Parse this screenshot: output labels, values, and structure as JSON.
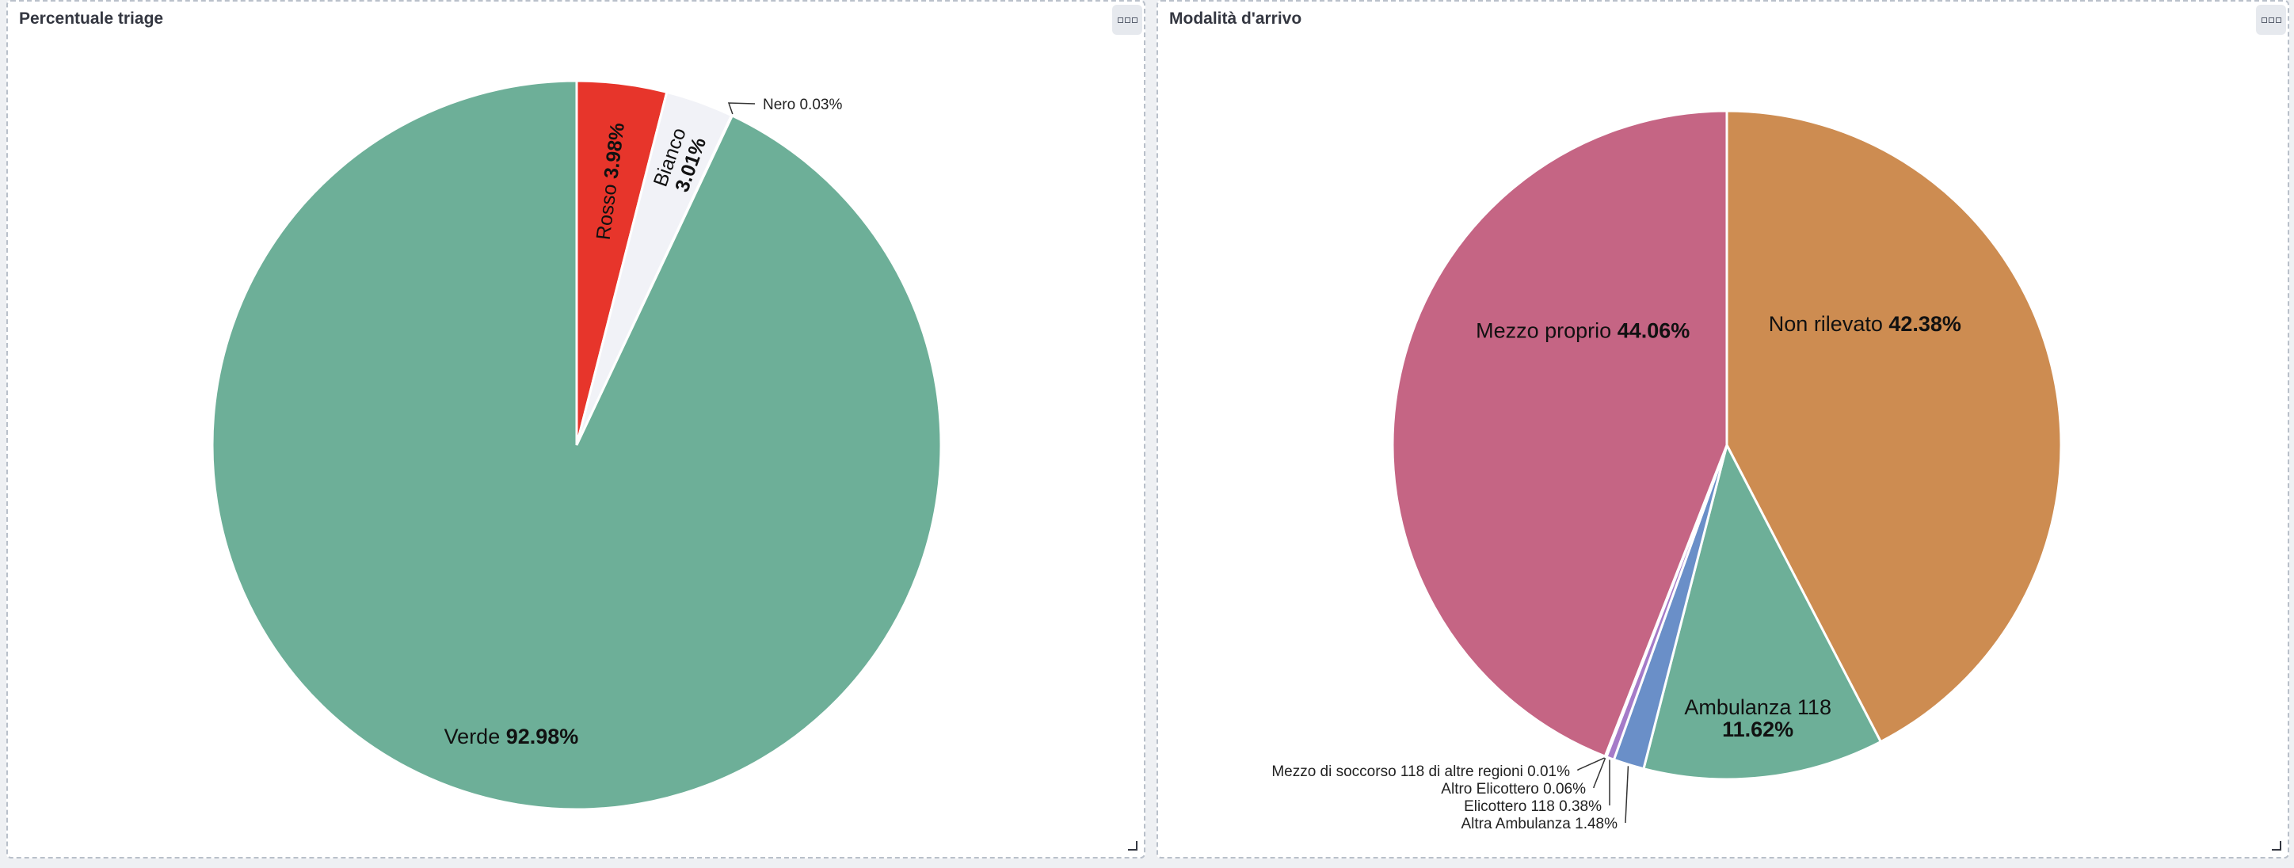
{
  "panels": [
    {
      "title": "Percentuale triage",
      "chart_data": {
        "type": "pie",
        "title": "Percentuale triage",
        "slices": [
          {
            "label": "Rosso",
            "value": 3.98,
            "value_label": "3.98%",
            "color": "#e7352b"
          },
          {
            "label": "Bianco",
            "value": 3.01,
            "value_label": "3.01%",
            "color": "#f1f2f7"
          },
          {
            "label": "Nero",
            "value": 0.03,
            "value_label": "0.03%",
            "color": "#222222"
          },
          {
            "label": "Verde",
            "value": 92.98,
            "value_label": "92.98%",
            "color": "#6daf98"
          }
        ]
      }
    },
    {
      "title": "Modalità d'arrivo",
      "chart_data": {
        "type": "pie",
        "title": "Modalità d'arrivo",
        "slices": [
          {
            "label": "Non rilevato",
            "value": 42.38,
            "value_label": "42.38%",
            "color": "#cd8c51"
          },
          {
            "label": "Ambulanza 118",
            "value": 11.62,
            "value_label": "11.62%",
            "color": "#6daf98"
          },
          {
            "label": "Altra Ambulanza",
            "value": 1.48,
            "value_label": "1.48%",
            "color": "#6a8fc8"
          },
          {
            "label": "Elicottero 118",
            "value": 0.38,
            "value_label": "0.38%",
            "color": "#a57bc8"
          },
          {
            "label": "Altro Elicottero",
            "value": 0.06,
            "value_label": "0.06%",
            "color": "#d57aa6"
          },
          {
            "label": "Mezzo di soccorso 118 di altre regioni",
            "value": 0.01,
            "value_label": "0.01%",
            "color": "#c9c14a"
          },
          {
            "label": "Mezzo proprio",
            "value": 44.06,
            "value_label": "44.06%",
            "color": "#c56584"
          }
        ]
      }
    }
  ]
}
